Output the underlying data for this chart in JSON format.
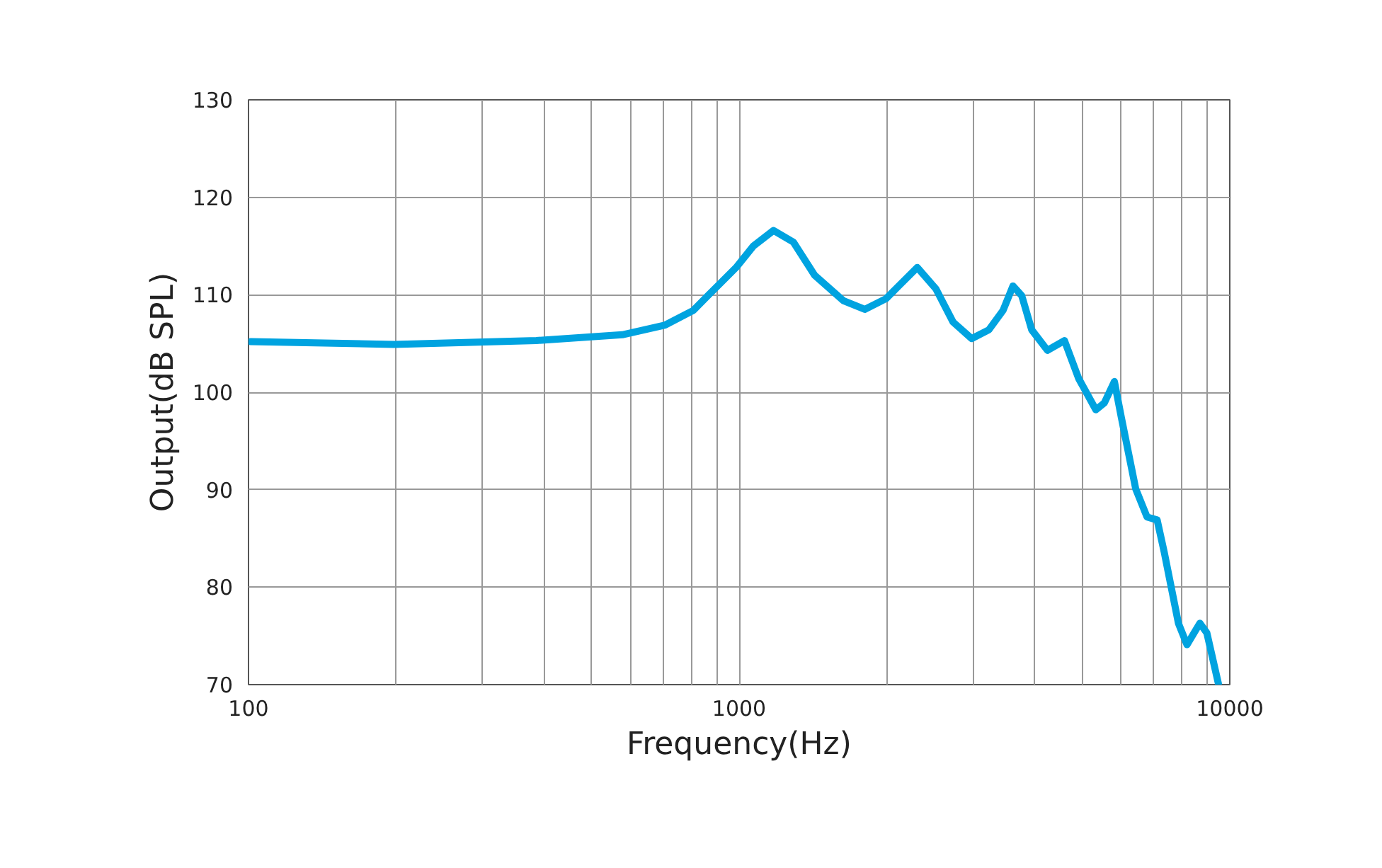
{
  "chart_data": {
    "type": "line",
    "xlabel": "Frequency(Hz)",
    "ylabel": "Output(dB SPL)",
    "log": "x",
    "grid": true,
    "line_style": "solid",
    "marker": "none",
    "xlim": [
      100,
      10000
    ],
    "ylim": [
      70,
      130
    ],
    "xticks": [
      100,
      {
        "value": 200,
        "label": null
      },
      {
        "value": 300,
        "label": null
      },
      {
        "value": 400,
        "label": null
      },
      {
        "value": 500,
        "label": null
      },
      {
        "value": 600,
        "label": null
      },
      {
        "value": 700,
        "label": null
      },
      {
        "value": 800,
        "label": null
      },
      {
        "value": 900,
        "label": null
      },
      1000,
      {
        "value": 2000,
        "label": null
      },
      {
        "value": 3000,
        "label": null
      },
      {
        "value": 4000,
        "label": null
      },
      {
        "value": 5000,
        "label": null
      },
      {
        "value": 6000,
        "label": null
      },
      {
        "value": 7000,
        "label": null
      },
      {
        "value": 8000,
        "label": null
      },
      {
        "value": 9000,
        "label": null
      },
      10000
    ],
    "yticks": [
      70,
      80,
      90,
      100,
      110,
      120,
      130
    ],
    "series": [
      {
        "color": "#00a3e0",
        "x": [
          101,
          198,
          386,
          578,
          707,
          807,
          863,
          986,
          1069,
          1175,
          1290,
          1425,
          1630,
          1803,
          1992,
          2307,
          2518,
          2729,
          2978,
          3228,
          3451,
          3615,
          3767,
          3947,
          4249,
          4603,
          4921,
          5333,
          5550,
          5819,
          6012,
          6430,
          6781,
          7111,
          7351,
          7858,
          8181,
          8690,
          8981,
          9480
        ],
        "values": [
          105.2,
          104.9,
          105.3,
          105.9,
          106.9,
          108.4,
          109.9,
          112.8,
          115.0,
          116.6,
          115.4,
          112.0,
          109.4,
          108.5,
          109.6,
          112.8,
          110.6,
          107.2,
          105.5,
          106.4,
          108.4,
          110.9,
          109.9,
          106.4,
          104.3,
          105.3,
          101.4,
          98.2,
          98.9,
          101.1,
          97.4,
          90.1,
          87.2,
          86.9,
          83.6,
          76.3,
          74.1,
          76.3,
          75.3,
          70.1
        ]
      }
    ]
  }
}
